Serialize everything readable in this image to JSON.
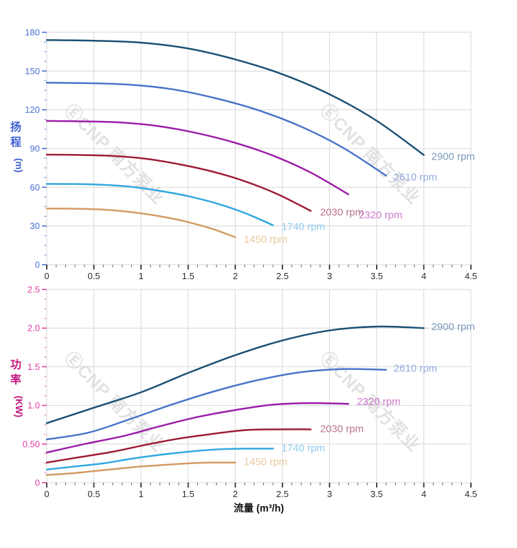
{
  "watermark": {
    "text": "ⒺCNP 南方泵业",
    "logo_glyph": "Ⓔ",
    "brand": "CNP",
    "brand_cn": "南方泵业",
    "color": "#e2e2e2"
  },
  "x_axis": {
    "title": "流量 (m³/h)",
    "min": 0,
    "max": 4.5,
    "major_step": 0.5,
    "minor_step": 0.1,
    "tick_labels": [
      "0",
      "0.5",
      "1",
      "1.5",
      "2",
      "2.5",
      "3",
      "3.5",
      "4",
      "4.5"
    ],
    "label_color": "#2b2b2b",
    "major_tick_color": "#2f2f2f",
    "minor_tick_color": "#707070",
    "title_color": "#101010"
  },
  "grid_color": "#d7d7d7",
  "chart_data": [
    {
      "type": "line",
      "id": "head-chart",
      "title": "",
      "xlabel": "流量 (m³/h)",
      "ylabel": "扬程",
      "y_unit": "(m)",
      "ylim": [
        0,
        180
      ],
      "y_major": 30,
      "y_minor": 7.5,
      "xlim": [
        0,
        4.5
      ],
      "grid": true,
      "y_tick_labels": [
        "0",
        "30",
        "60",
        "90",
        "120",
        "150",
        "180"
      ],
      "axis_label_color": "#4a6fd4",
      "axis_minor_tick_color": "#93a7e6",
      "axis_title_color": "#3a5fd0",
      "series": [
        {
          "name": "2900 rpm",
          "rpm": 2900,
          "color": "#1b4f72",
          "label_color": "#7b99bd",
          "label_at": [
            4.08,
            84
          ],
          "points": [
            [
              0,
              174
            ],
            [
              0.5,
              173.5
            ],
            [
              1,
              172
            ],
            [
              1.5,
              167.5
            ],
            [
              2,
              159
            ],
            [
              2.5,
              147.5
            ],
            [
              3,
              132
            ],
            [
              3.5,
              111.5
            ],
            [
              4,
              85
            ]
          ]
        },
        {
          "name": "2610 rpm",
          "rpm": 2610,
          "color": "#4a74c9",
          "label_color": "#93a9de",
          "label_at": [
            3.68,
            68
          ],
          "points": [
            [
              0,
              141
            ],
            [
              0.45,
              140.6
            ],
            [
              0.9,
              139.3
            ],
            [
              1.35,
              135.7
            ],
            [
              1.8,
              128.8
            ],
            [
              2.25,
              119.5
            ],
            [
              2.7,
              106.9
            ],
            [
              3.15,
              90.3
            ],
            [
              3.6,
              69
            ]
          ]
        },
        {
          "name": "2320 rpm",
          "rpm": 2320,
          "color": "#9c1da8",
          "label_color": "#c979cb",
          "label_at": [
            3.31,
            38.5
          ],
          "points": [
            [
              0,
              111.4
            ],
            [
              0.4,
              111
            ],
            [
              0.8,
              110.1
            ],
            [
              1.2,
              107.2
            ],
            [
              1.6,
              101.8
            ],
            [
              2,
              94.4
            ],
            [
              2.4,
              84.5
            ],
            [
              2.8,
              71.4
            ],
            [
              3.2,
              54.5
            ]
          ]
        },
        {
          "name": "2030 rpm",
          "rpm": 2030,
          "color": "#9e1b36",
          "label_color": "#bd7489",
          "label_at": [
            2.9,
            40.7
          ],
          "points": [
            [
              0,
              85.3
            ],
            [
              0.35,
              85
            ],
            [
              0.7,
              84.3
            ],
            [
              1.05,
              82.1
            ],
            [
              1.4,
              77.9
            ],
            [
              1.75,
              72.3
            ],
            [
              2.1,
              64.7
            ],
            [
              2.45,
              54.6
            ],
            [
              2.8,
              41.7
            ]
          ]
        },
        {
          "name": "1740 rpm",
          "rpm": 1740,
          "color": "#30a8e0",
          "label_color": "#8fcbee",
          "label_at": [
            2.49,
            29.5
          ],
          "points": [
            [
              0,
              62.6
            ],
            [
              0.3,
              62.5
            ],
            [
              0.6,
              61.9
            ],
            [
              0.9,
              60.3
            ],
            [
              1.2,
              57.2
            ],
            [
              1.5,
              53.1
            ],
            [
              1.8,
              47.5
            ],
            [
              2.1,
              40.1
            ],
            [
              2.4,
              30.6
            ]
          ]
        },
        {
          "name": "1450 rpm",
          "rpm": 1450,
          "color": "#d49a62",
          "label_color": "#e9c89c",
          "label_at": [
            2.09,
            19.8
          ],
          "points": [
            [
              0,
              43.5
            ],
            [
              0.25,
              43.4
            ],
            [
              0.5,
              43
            ],
            [
              0.75,
              41.9
            ],
            [
              1,
              39.8
            ],
            [
              1.25,
              36.9
            ],
            [
              1.5,
              33
            ],
            [
              1.75,
              27.9
            ],
            [
              2,
              21.3
            ]
          ]
        }
      ]
    },
    {
      "type": "line",
      "id": "power-chart",
      "title": "",
      "xlabel": "流量 (m³/h)",
      "ylabel": "功率",
      "y_unit": "(KW)",
      "ylim": [
        0,
        2.5
      ],
      "y_major": 0.5,
      "y_minor": 0.125,
      "xlim": [
        0,
        4.5
      ],
      "grid": true,
      "y_tick_labels": [
        "0",
        "0.50",
        "1.0",
        "1.5",
        "2.0",
        "2.5"
      ],
      "axis_label_color": "#e03da0",
      "axis_minor_tick_color": "#f09ccd",
      "axis_title_color": "#c2187e",
      "series": [
        {
          "name": "2900 rpm",
          "rpm": 2900,
          "color": "#1b4f72",
          "label_color": "#7b99bd",
          "label_at": [
            4.08,
            2.02
          ],
          "points": [
            [
              0,
              0.77
            ],
            [
              0.5,
              0.97
            ],
            [
              1,
              1.17
            ],
            [
              1.5,
              1.42
            ],
            [
              2,
              1.65
            ],
            [
              2.5,
              1.84
            ],
            [
              3,
              1.97
            ],
            [
              3.5,
              2.02
            ],
            [
              4,
              2.0
            ]
          ]
        },
        {
          "name": "2610 rpm",
          "rpm": 2610,
          "color": "#4a74c9",
          "label_color": "#93a9de",
          "label_at": [
            3.68,
            1.48
          ],
          "points": [
            [
              0,
              0.56
            ],
            [
              0.45,
              0.65
            ],
            [
              0.9,
              0.83
            ],
            [
              1.35,
              1.02
            ],
            [
              1.8,
              1.19
            ],
            [
              2.25,
              1.33
            ],
            [
              2.7,
              1.43
            ],
            [
              3.15,
              1.47
            ],
            [
              3.6,
              1.46
            ]
          ]
        },
        {
          "name": "2320 rpm",
          "rpm": 2320,
          "color": "#9c1da8",
          "label_color": "#c979cb",
          "label_at": [
            3.29,
            1.05
          ],
          "points": [
            [
              0,
              0.39
            ],
            [
              0.4,
              0.5
            ],
            [
              0.8,
              0.6
            ],
            [
              1.2,
              0.73
            ],
            [
              1.6,
              0.85
            ],
            [
              2,
              0.94
            ],
            [
              2.4,
              1.01
            ],
            [
              2.8,
              1.03
            ],
            [
              3.2,
              1.02
            ]
          ]
        },
        {
          "name": "2030 rpm",
          "rpm": 2030,
          "color": "#9e1b36",
          "label_color": "#bd7489",
          "label_at": [
            2.9,
            0.7
          ],
          "points": [
            [
              0,
              0.26
            ],
            [
              0.35,
              0.33
            ],
            [
              0.7,
              0.4
            ],
            [
              1.05,
              0.49
            ],
            [
              1.4,
              0.57
            ],
            [
              1.75,
              0.63
            ],
            [
              2.1,
              0.68
            ],
            [
              2.45,
              0.69
            ],
            [
              2.8,
              0.69
            ]
          ]
        },
        {
          "name": "1740 rpm",
          "rpm": 1740,
          "color": "#30a8e0",
          "label_color": "#8fcbee",
          "label_at": [
            2.49,
            0.45
          ],
          "points": [
            [
              0,
              0.17
            ],
            [
              0.3,
              0.21
            ],
            [
              0.6,
              0.25
            ],
            [
              0.9,
              0.31
            ],
            [
              1.2,
              0.36
            ],
            [
              1.5,
              0.4
            ],
            [
              1.8,
              0.43
            ],
            [
              2.1,
              0.44
            ],
            [
              2.4,
              0.44
            ]
          ]
        },
        {
          "name": "1450 rpm",
          "rpm": 1450,
          "color": "#d49a62",
          "label_color": "#e9c89c",
          "label_at": [
            2.09,
            0.27
          ],
          "points": [
            [
              0,
              0.1
            ],
            [
              0.25,
              0.12
            ],
            [
              0.5,
              0.15
            ],
            [
              0.75,
              0.18
            ],
            [
              1,
              0.21
            ],
            [
              1.25,
              0.23
            ],
            [
              1.5,
              0.25
            ],
            [
              1.75,
              0.26
            ],
            [
              2,
              0.26
            ]
          ]
        }
      ]
    }
  ]
}
